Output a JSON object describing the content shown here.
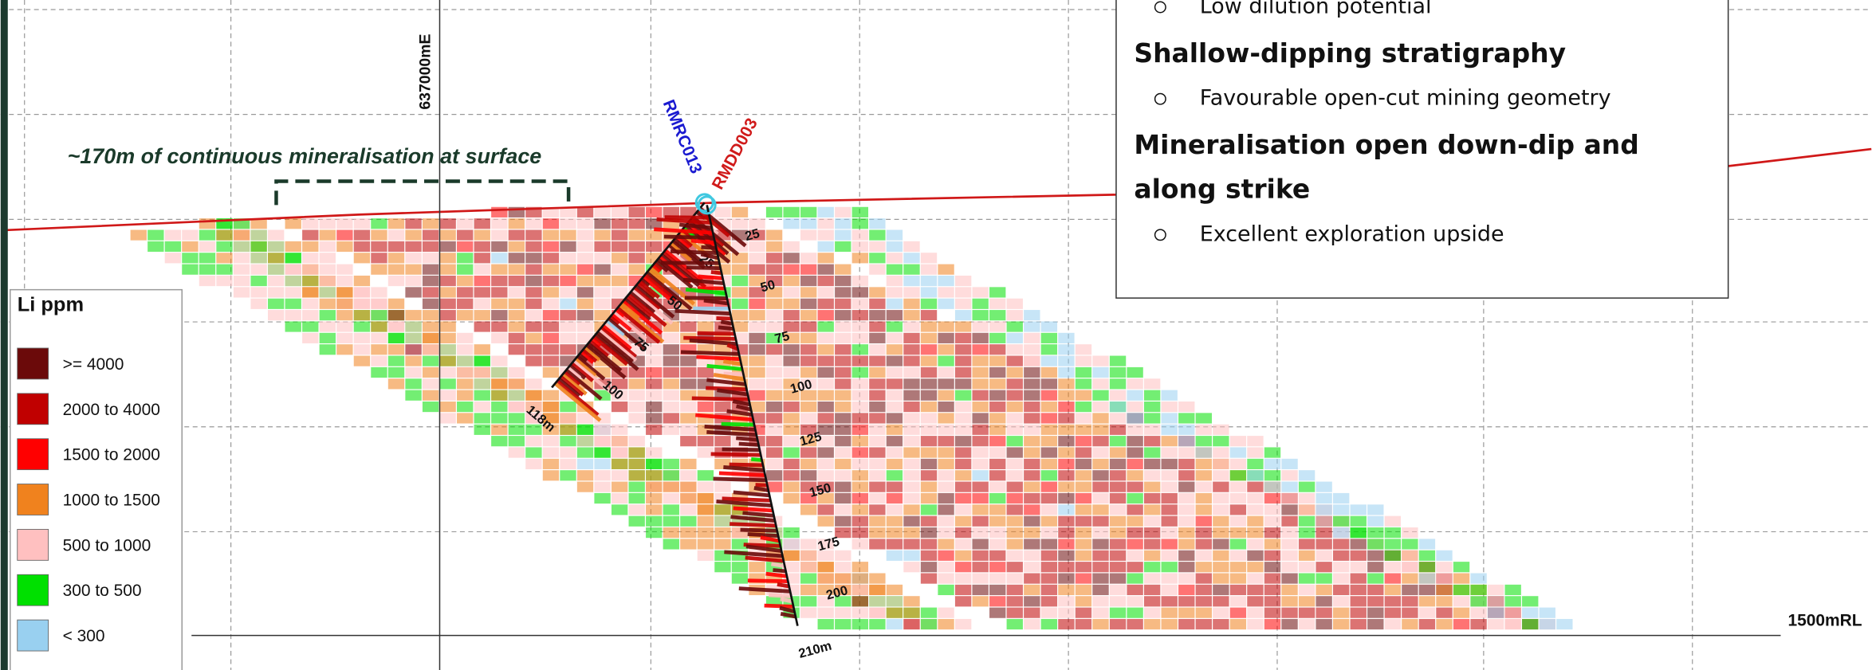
{
  "textbox": {
    "top_bullet": "Low dilution potential",
    "sections": [
      {
        "heading": "Shallow-dipping stratigraphy",
        "bullet": "Favourable open-cut mining geometry"
      },
      {
        "heading": "Mineralisation open down-dip and along strike",
        "bullet": "Excellent exploration upside"
      }
    ]
  },
  "easting_label": "637000mE",
  "rl_label": "1500mRL",
  "annotation": "~170m of continuous mineralisation at surface",
  "holes": [
    {
      "name": "RMRC013",
      "color": "#1a1ad0",
      "depths": [
        "25",
        "50",
        "75",
        "100",
        "118m"
      ]
    },
    {
      "name": "RMDD003",
      "color": "#d01a1a",
      "depths": [
        "25",
        "50",
        "75",
        "100",
        "125",
        "150",
        "175",
        "200",
        "210m"
      ]
    }
  ],
  "legend": {
    "title": "Li ppm",
    "items": [
      {
        "label": ">= 4000",
        "color": "#6b0a0a"
      },
      {
        "label": "2000 to 4000",
        "color": "#c00000"
      },
      {
        "label": "1500 to 2000",
        "color": "#ff0000"
      },
      {
        "label": "1000 to 1500",
        "color": "#f0821e"
      },
      {
        "label": "500 to 1000",
        "color": "#ffc0c0"
      },
      {
        "label": "300 to 500",
        "color": "#00e000"
      },
      {
        "label": "< 300",
        "color": "#99d0f0"
      }
    ]
  }
}
